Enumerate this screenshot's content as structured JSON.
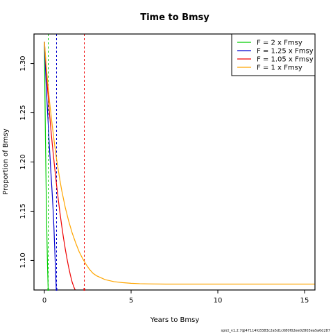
{
  "chart_data": {
    "type": "line",
    "title": "Time to Bmsy",
    "xlabel": "Years to Bmsy",
    "ylabel": "Proportion of Bmsy",
    "xlim": [
      -0.6,
      15.6
    ],
    "ylim": [
      1.07,
      1.33
    ],
    "xticks": [
      0,
      5,
      10,
      15
    ],
    "yticks": [
      1.1,
      1.15,
      1.2,
      1.25,
      1.3
    ],
    "ytick_labels": [
      "1.10",
      "1.15",
      "1.20",
      "1.25",
      "1.30"
    ],
    "grid": false,
    "legend_position": "top-right",
    "series": [
      {
        "name": "F = 2 x Fmsy",
        "color": "#00CD00",
        "x": [
          0,
          0.03,
          0.06,
          0.09,
          0.12,
          0.15,
          0.18,
          0.21,
          0.24
        ],
        "y": [
          1.322,
          1.27,
          1.225,
          1.185,
          1.15,
          1.12,
          1.095,
          1.075,
          1.06
        ],
        "vline": 0.22
      },
      {
        "name": "F = 1.25 x Fmsy",
        "color": "#0000CD",
        "x": [
          0,
          0.05,
          0.1,
          0.15,
          0.2,
          0.25,
          0.3,
          0.35,
          0.4,
          0.45,
          0.5,
          0.55,
          0.6,
          0.65,
          0.7
        ],
        "y": [
          1.322,
          1.3,
          1.28,
          1.262,
          1.245,
          1.228,
          1.212,
          1.197,
          1.182,
          1.168,
          1.152,
          1.133,
          1.11,
          1.085,
          1.065
        ],
        "vline": 0.7
      },
      {
        "name": "F = 1.05 x Fmsy",
        "color": "#EE0000",
        "x": [
          0,
          0.1,
          0.2,
          0.3,
          0.4,
          0.5,
          0.6,
          0.7,
          0.8,
          0.9,
          1.0,
          1.1,
          1.2,
          1.3,
          1.4,
          1.5,
          1.6,
          1.7,
          1.8,
          1.9
        ],
        "y": [
          1.322,
          1.295,
          1.27,
          1.248,
          1.228,
          1.21,
          1.193,
          1.177,
          1.162,
          1.148,
          1.135,
          1.123,
          1.112,
          1.102,
          1.093,
          1.085,
          1.078,
          1.073,
          1.069,
          1.066
        ],
        "vline": 2.3
      },
      {
        "name": "F = 1 x Fmsy",
        "color": "#FFA500",
        "x": [
          0,
          0.1,
          0.2,
          0.3,
          0.4,
          0.5,
          0.6,
          0.7,
          0.8,
          0.9,
          1.0,
          1.2,
          1.4,
          1.6,
          1.8,
          2.0,
          2.2,
          2.4,
          2.6,
          2.8,
          3.0,
          3.5,
          4.0,
          4.5,
          5.0,
          5.5,
          6.0,
          7.0,
          8.0,
          9.0,
          10.0,
          12.0,
          14.0,
          15.6
        ],
        "y": [
          1.322,
          1.299,
          1.279,
          1.261,
          1.245,
          1.23,
          1.216,
          1.203,
          1.192,
          1.181,
          1.171,
          1.154,
          1.14,
          1.128,
          1.118,
          1.109,
          1.102,
          1.096,
          1.091,
          1.087,
          1.0845,
          1.0805,
          1.0785,
          1.0775,
          1.0768,
          1.0764,
          1.0762,
          1.076,
          1.076,
          1.076,
          1.076,
          1.076,
          1.076,
          1.076
        ],
        "vline": null
      }
    ],
    "footnote": "spict_v1.2.7@47114fc8383c2a5d1c080f02ee02803ea5a0d287"
  }
}
